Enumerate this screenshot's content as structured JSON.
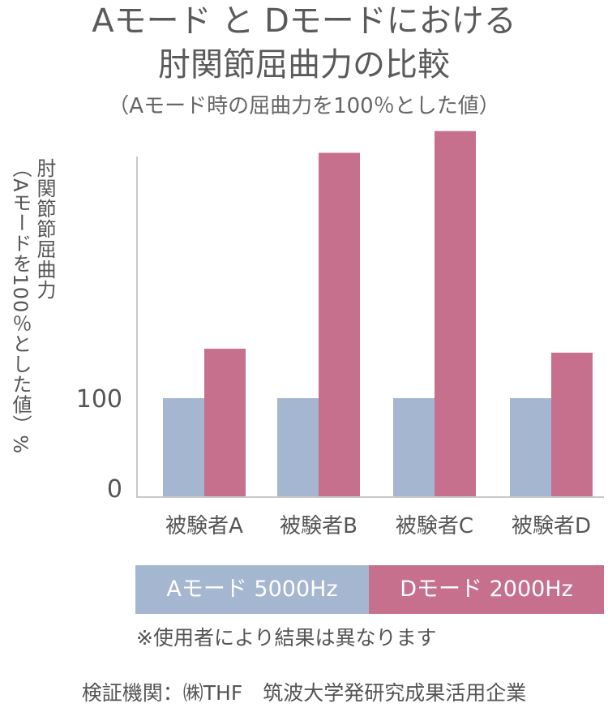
{
  "title_line1": "Aモード と Dモードにおける",
  "title_line2": "肘関節屈曲力の比較",
  "subtitle": "（Aモード時の屈曲力を100％とした値）",
  "ylabel_line1": "肘関節節屈曲力",
  "ylabel_line2": "（Aモードを100％とした値）%",
  "legend": {
    "a_label": "Aモード 5000Hz",
    "d_label": "Dモード 2000Hz",
    "a_color": "#a5b6d0",
    "d_color": "#c6708d"
  },
  "note": "※使用者により結果は異なります",
  "footer": "検証機関：㈱THF　筑波大学発研究成果活用企業",
  "chart_data": {
    "type": "bar",
    "categories": [
      "被験者A",
      "被験者B",
      "被験者C",
      "被験者D"
    ],
    "series": [
      {
        "name": "Aモード 5000Hz",
        "values": [
          100,
          100,
          100,
          100
        ],
        "color": "#a5b6d0"
      },
      {
        "name": "Dモード 2000Hz",
        "values": [
          150,
          348,
          370,
          146
        ],
        "color": "#c6708d"
      }
    ],
    "yticks": [
      "0",
      "100"
    ],
    "ytick_values": [
      0,
      100
    ],
    "ylim": [
      0,
      390
    ],
    "grid": false
  }
}
